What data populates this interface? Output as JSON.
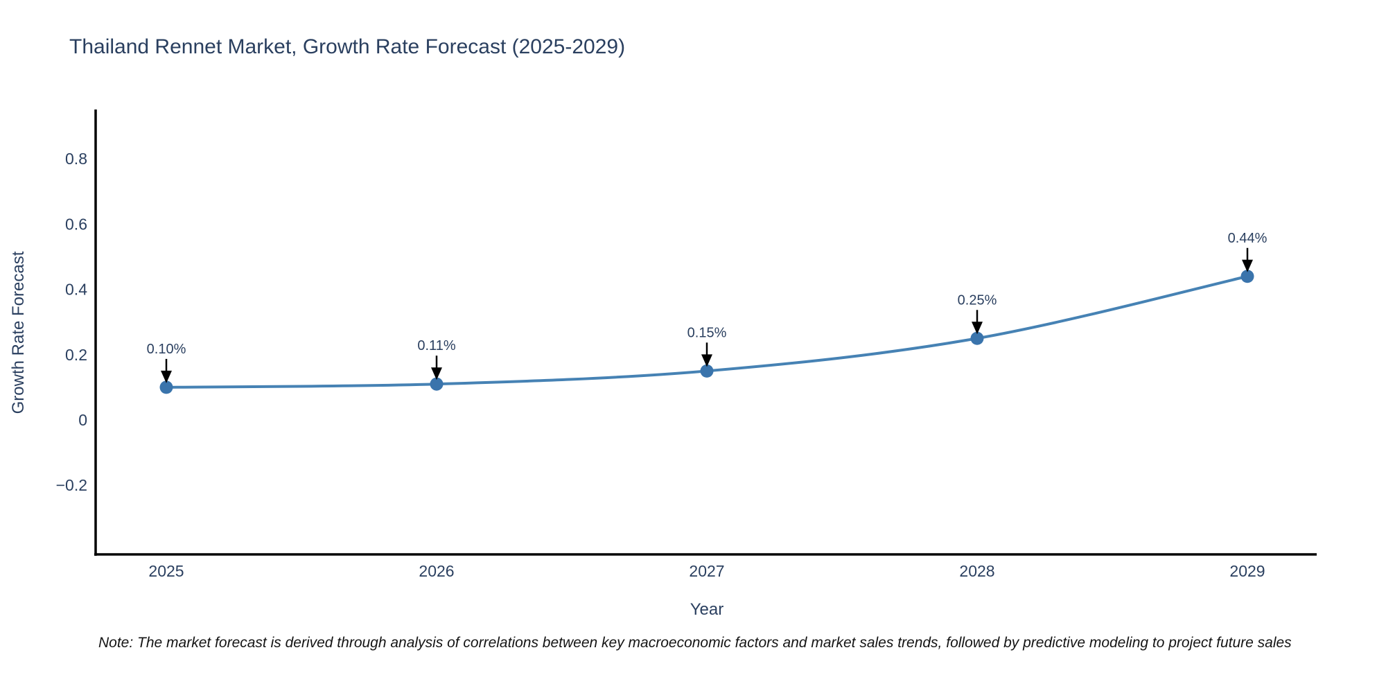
{
  "page": {
    "title": "Thailand Rennet Market, Growth Rate Forecast (2025-2029)",
    "note": "Note: The market forecast is derived through analysis of correlations between key macroeconomic factors and market sales trends, followed by predictive modeling to project future sales"
  },
  "chart_data": {
    "type": "line",
    "title": "Thailand Rennet Market, Growth Rate Forecast (2025-2029)",
    "xlabel": "Year",
    "ylabel": "Growth Rate Forecast",
    "x": [
      2025,
      2026,
      2027,
      2028,
      2029
    ],
    "series": [
      {
        "name": "Growth Rate Forecast",
        "values": [
          0.1,
          0.11,
          0.15,
          0.25,
          0.44
        ]
      }
    ],
    "point_labels": [
      "0.10%",
      "0.11%",
      "0.15%",
      "0.25%",
      "0.44%"
    ],
    "xtick_labels": [
      "2025",
      "2026",
      "2027",
      "2028",
      "2029"
    ],
    "yticks": [
      0.8,
      0.6,
      0.4,
      0.2,
      0,
      -0.2
    ],
    "ytick_labels": [
      "0.8",
      "0.6",
      "0.4",
      "0.2",
      "0",
      "−0.2"
    ],
    "ylim": [
      -0.41,
      0.95
    ],
    "grid": false,
    "legend": "none",
    "line_shape": "spline",
    "colors": {
      "line": "#4682b4",
      "marker": "#3a74ac",
      "axis": "#000000",
      "text": "#2a3f5f",
      "annotation_text": "#2a3f5f",
      "annotation_arrow": "#000000"
    }
  }
}
